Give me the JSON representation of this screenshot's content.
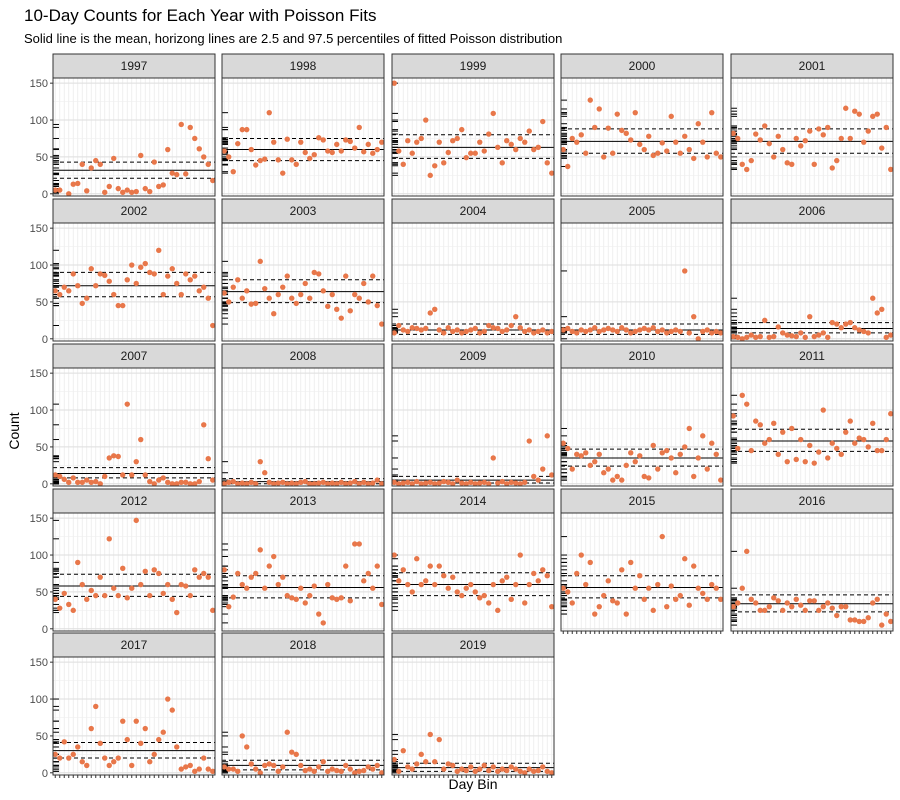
{
  "chart_data": {
    "type": "scatter",
    "title": "10-Day Counts for Each Year with Poisson Fits",
    "subtitle": "Solid line is the mean, horizong lines are 2.5 and 97.5 percentiles of fitted Poisson distribution",
    "xlabel": "Day Bin",
    "ylabel": "Count",
    "ylim": [
      -3,
      157
    ],
    "xlim": [
      0.5,
      36.5
    ],
    "y_ticks": [
      0,
      50,
      100,
      150
    ],
    "grid": true,
    "point_color": "#E8774A",
    "panels": [
      {
        "year": "1997",
        "mean": 32,
        "lower": 21,
        "upper": 43,
        "values": [
          5,
          5,
          null,
          0,
          13,
          14,
          40,
          4,
          35,
          45,
          40,
          2,
          10,
          48,
          7,
          2,
          5,
          2,
          3,
          52,
          7,
          3,
          43,
          10,
          12,
          60,
          28,
          26,
          94,
          27,
          90,
          75,
          61,
          50,
          40,
          18
        ]
      },
      {
        "year": "1998",
        "mean": 60,
        "lower": 45,
        "upper": 75,
        "values": [
          58,
          50,
          30,
          68,
          87,
          87,
          60,
          39,
          45,
          47,
          110,
          70,
          46,
          28,
          74,
          46,
          40,
          70,
          56,
          48,
          53,
          76,
          73,
          58,
          56,
          67,
          58,
          73,
          71,
          62,
          90,
          57,
          67,
          55,
          60,
          70
        ]
      },
      {
        "year": "1999",
        "mean": 63,
        "lower": 48,
        "upper": 80,
        "values": [
          150,
          58,
          40,
          72,
          55,
          70,
          75,
          100,
          25,
          38,
          70,
          42,
          56,
          72,
          75,
          87,
          49,
          55,
          55,
          70,
          58,
          81,
          109,
          63,
          42,
          72,
          67,
          60,
          75,
          70,
          85,
          60,
          63,
          98,
          42,
          28
        ]
      },
      {
        "year": "2000",
        "mean": 71,
        "lower": 55,
        "upper": 88,
        "values": [
          60,
          37,
          75,
          70,
          80,
          55,
          127,
          90,
          115,
          50,
          89,
          55,
          108,
          86,
          82,
          73,
          110,
          67,
          60,
          78,
          52,
          55,
          69,
          58,
          105,
          70,
          55,
          78,
          60,
          48,
          95,
          70,
          50,
          110,
          55,
          50
        ]
      },
      {
        "year": "2001",
        "mean": 71,
        "lower": 55,
        "upper": 88,
        "values": [
          82,
          75,
          40,
          33,
          45,
          81,
          73,
          92,
          68,
          50,
          78,
          60,
          42,
          40,
          75,
          65,
          72,
          85,
          40,
          88,
          80,
          90,
          35,
          45,
          75,
          116,
          75,
          112,
          108,
          70,
          85,
          105,
          108,
          62,
          90,
          33
        ]
      },
      {
        "year": "2002",
        "mean": 72,
        "lower": 57,
        "upper": 90,
        "values": [
          65,
          60,
          70,
          65,
          88,
          72,
          48,
          55,
          95,
          72,
          88,
          86,
          78,
          60,
          45,
          45,
          80,
          100,
          75,
          97,
          102,
          90,
          88,
          120,
          60,
          85,
          95,
          75,
          60,
          88,
          80,
          85,
          65,
          70,
          55,
          18
        ]
      },
      {
        "year": "2003",
        "mean": 64,
        "lower": 49,
        "upper": 80,
        "values": [
          62,
          50,
          70,
          80,
          55,
          65,
          47,
          48,
          105,
          68,
          55,
          34,
          60,
          70,
          85,
          55,
          48,
          60,
          75,
          55,
          90,
          88,
          65,
          44,
          60,
          40,
          28,
          85,
          38,
          60,
          55,
          75,
          50,
          85,
          45,
          20
        ]
      },
      {
        "year": "2004",
        "mean": 12,
        "lower": 6,
        "upper": 20,
        "values": [
          8,
          18,
          12,
          10,
          15,
          14,
          12,
          14,
          35,
          40,
          12,
          8,
          15,
          10,
          12,
          8,
          10,
          12,
          14,
          8,
          10,
          18,
          15,
          14,
          10,
          12,
          18,
          30,
          15,
          10,
          12,
          8,
          10,
          12,
          8,
          10
        ]
      },
      {
        "year": "2005",
        "mean": 12,
        "lower": 6,
        "upper": 20,
        "values": [
          12,
          14,
          10,
          8,
          12,
          10,
          12,
          15,
          10,
          12,
          14,
          12,
          10,
          15,
          12,
          8,
          10,
          12,
          14,
          12,
          15,
          10,
          12,
          8,
          10,
          12,
          10,
          92,
          8,
          30,
          0,
          10,
          12,
          8,
          10,
          8
        ]
      },
      {
        "year": "2006",
        "mean": 14,
        "lower": 8,
        "upper": 22,
        "values": [
          3,
          2,
          0,
          2,
          5,
          2,
          3,
          25,
          2,
          3,
          16,
          8,
          5,
          4,
          3,
          8,
          2,
          30,
          3,
          5,
          8,
          2,
          22,
          20,
          15,
          20,
          22,
          15,
          12,
          10,
          8,
          55,
          35,
          40,
          2,
          5
        ]
      },
      {
        "year": "2007",
        "mean": 14,
        "lower": 8,
        "upper": 22,
        "values": [
          12,
          10,
          6,
          2,
          8,
          2,
          2,
          5,
          2,
          3,
          0,
          10,
          35,
          38,
          37,
          12,
          108,
          12,
          30,
          60,
          12,
          3,
          0,
          5,
          8,
          2,
          0,
          0,
          2,
          2,
          0,
          0,
          3,
          80,
          34,
          5
        ]
      },
      {
        "year": "2008",
        "mean": 3,
        "lower": 0,
        "upper": 7,
        "values": [
          0,
          2,
          3,
          0,
          1,
          0,
          2,
          0,
          30,
          15,
          2,
          0,
          1,
          2,
          0,
          1,
          0,
          2,
          3,
          0,
          0,
          1,
          2,
          0,
          1,
          0,
          2,
          0,
          1,
          3,
          0,
          2,
          0,
          1,
          5,
          0
        ]
      },
      {
        "year": "2009",
        "mean": 5,
        "lower": 1,
        "upper": 10,
        "values": [
          2,
          0,
          1,
          2,
          0,
          3,
          0,
          1,
          2,
          0,
          1,
          3,
          2,
          0,
          5,
          1,
          0,
          2,
          0,
          1,
          2,
          0,
          35,
          1,
          3,
          0,
          2,
          1,
          0,
          2,
          58,
          10,
          5,
          20,
          65,
          12
        ]
      },
      {
        "year": "2010",
        "mean": 35,
        "lower": 24,
        "upper": 47,
        "values": [
          55,
          48,
          20,
          40,
          38,
          42,
          25,
          30,
          40,
          15,
          20,
          5,
          10,
          5,
          25,
          42,
          30,
          38,
          10,
          8,
          52,
          20,
          42,
          45,
          35,
          15,
          40,
          50,
          75,
          10,
          35,
          65,
          20,
          55,
          40,
          5
        ]
      },
      {
        "year": "2011",
        "mean": 58,
        "lower": 44,
        "upper": 74,
        "values": [
          92,
          48,
          120,
          108,
          45,
          85,
          80,
          55,
          60,
          82,
          40,
          70,
          30,
          75,
          33,
          60,
          30,
          52,
          28,
          43,
          100,
          35,
          55,
          48,
          40,
          70,
          85,
          55,
          62,
          60,
          50,
          82,
          45,
          45,
          60,
          95
        ]
      },
      {
        "year": "2012",
        "mean": 58,
        "lower": 44,
        "upper": 74,
        "values": [
          40,
          28,
          48,
          33,
          25,
          90,
          60,
          40,
          52,
          45,
          70,
          45,
          122,
          55,
          45,
          82,
          42,
          55,
          147,
          60,
          78,
          45,
          80,
          75,
          48,
          60,
          40,
          22,
          60,
          58,
          45,
          80,
          70,
          75,
          70,
          25
        ]
      },
      {
        "year": "2013",
        "mean": 56,
        "lower": 42,
        "upper": 72,
        "values": [
          80,
          30,
          43,
          75,
          60,
          55,
          70,
          75,
          107,
          55,
          85,
          98,
          60,
          70,
          45,
          42,
          40,
          55,
          35,
          45,
          58,
          20,
          8,
          60,
          42,
          40,
          42,
          85,
          38,
          115,
          115,
          65,
          75,
          55,
          85,
          33
        ]
      },
      {
        "year": "2014",
        "mean": 60,
        "lower": 45,
        "upper": 76,
        "values": [
          100,
          65,
          80,
          60,
          50,
          95,
          60,
          65,
          85,
          60,
          85,
          72,
          55,
          70,
          50,
          45,
          55,
          60,
          50,
          42,
          45,
          35,
          60,
          25,
          65,
          70,
          40,
          60,
          100,
          35,
          60,
          75,
          65,
          80,
          72,
          30
        ]
      },
      {
        "year": "2015",
        "mean": 56,
        "lower": 42,
        "upper": 72,
        "values": [
          55,
          50,
          35,
          75,
          100,
          60,
          90,
          20,
          30,
          45,
          65,
          38,
          35,
          80,
          20,
          90,
          55,
          72,
          40,
          55,
          25,
          60,
          125,
          30,
          58,
          40,
          45,
          95,
          32,
          85,
          55,
          48,
          40,
          60,
          55,
          40
        ]
      },
      {
        "year": "2016",
        "mean": 34,
        "lower": 23,
        "upper": 46,
        "values": [
          30,
          35,
          55,
          105,
          40,
          35,
          25,
          25,
          30,
          42,
          38,
          25,
          35,
          30,
          40,
          32,
          25,
          38,
          38,
          25,
          30,
          35,
          28,
          18,
          30,
          30,
          12,
          12,
          10,
          10,
          15,
          35,
          40,
          5,
          20,
          10
        ]
      },
      {
        "year": "2017",
        "mean": 30,
        "lower": 20,
        "upper": 41,
        "values": [
          25,
          20,
          42,
          20,
          25,
          35,
          15,
          10,
          60,
          90,
          40,
          20,
          10,
          15,
          20,
          70,
          45,
          10,
          70,
          40,
          60,
          15,
          25,
          45,
          55,
          100,
          85,
          35,
          5,
          8,
          10,
          2,
          5,
          20,
          5,
          2
        ]
      },
      {
        "year": "2018",
        "mean": 10,
        "lower": 4,
        "upper": 17,
        "values": [
          8,
          5,
          5,
          2,
          50,
          35,
          12,
          5,
          0,
          10,
          12,
          10,
          2,
          8,
          55,
          28,
          25,
          10,
          3,
          5,
          2,
          8,
          15,
          2,
          5,
          3,
          2,
          10,
          5,
          0,
          2,
          3,
          8,
          5,
          10,
          0
        ]
      },
      {
        "year": "2019",
        "mean": 7,
        "lower": 2,
        "upper": 13,
        "values": [
          18,
          2,
          30,
          8,
          5,
          12,
          25,
          15,
          52,
          15,
          45,
          5,
          12,
          10,
          2,
          5,
          3,
          8,
          2,
          5,
          10,
          3,
          8,
          2,
          5,
          3,
          8,
          5,
          2,
          0,
          5,
          2,
          3,
          8,
          2,
          0
        ]
      }
    ]
  }
}
